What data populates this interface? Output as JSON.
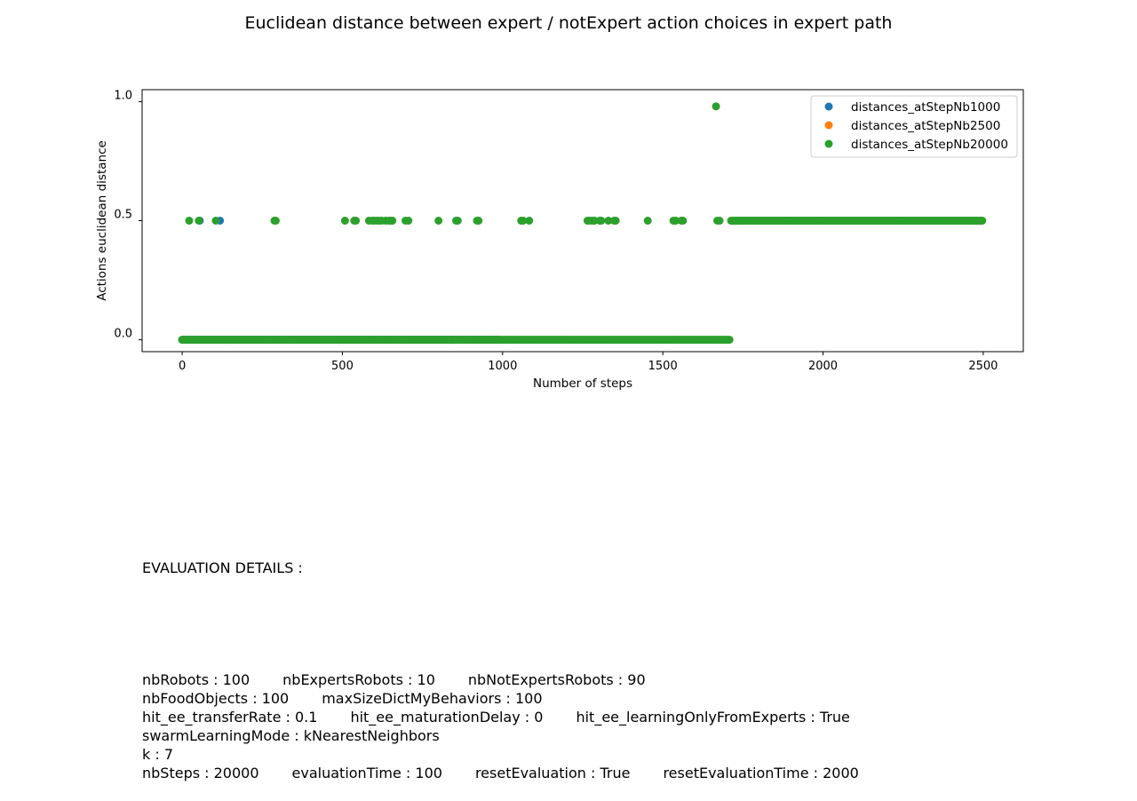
{
  "chart_data": {
    "type": "scatter",
    "title": "Euclidean distance between expert / notExpert action choices in expert path",
    "xlabel": "Number of steps",
    "ylabel": "Actions euclidean distance",
    "xlim": [
      -125,
      2625
    ],
    "ylim": [
      -0.05,
      1.05
    ],
    "x_ticks": [
      0,
      500,
      1000,
      1500,
      2000,
      2500
    ],
    "y_ticks": [
      0.0,
      0.5,
      1.0
    ],
    "x_tick_labels": [
      "0",
      "500",
      "1000",
      "1500",
      "2000",
      "2500"
    ],
    "y_tick_labels": [
      "0.0",
      "0.5",
      "1.0"
    ],
    "legend_position": "top-right",
    "grid": false,
    "series": [
      {
        "name": "distances_atStepNb1000",
        "color": "#1f77b4",
        "points_at_half": [
          55,
          118
        ],
        "zero_range": [
          0,
          990
        ],
        "half_range": null,
        "one_points": []
      },
      {
        "name": "distances_atStepNb2500",
        "color": "#ff7f0e",
        "points_at_half": [],
        "zero_range": null,
        "half_range": null,
        "one_points": []
      },
      {
        "name": "distances_atStepNb20000",
        "color": "#2ca02c",
        "points_at_half": [
          22,
          52,
          105,
          288,
          292,
          508,
          537,
          542,
          583,
          593,
          600,
          608,
          615,
          623,
          635,
          645,
          651,
          656,
          697,
          706,
          800,
          855,
          860,
          920,
          925,
          1058,
          1064,
          1083,
          1265,
          1272,
          1280,
          1287,
          1303,
          1308,
          1330,
          1348,
          1353,
          1453,
          1533,
          1540,
          1558,
          1563,
          1670,
          1677
        ],
        "zero_range": [
          0,
          1710
        ],
        "half_range": [
          1713,
          2500
        ],
        "one_points": [
          1666
        ]
      }
    ]
  },
  "details": {
    "heading": "EVALUATION DETAILS :",
    "lines": [
      [
        "nbRobots : 100",
        "nbExpertsRobots : 10",
        "nbNotExpertsRobots : 90"
      ],
      [
        "nbFoodObjects : 100",
        "maxSizeDictMyBehaviors : 100"
      ],
      [
        "hit_ee_transferRate : 0.1",
        "hit_ee_maturationDelay : 0",
        "hit_ee_learningOnlyFromExperts : True"
      ],
      [
        "swarmLearningMode : kNearestNeighbors"
      ],
      [
        "k : 7"
      ],
      [
        "nbSteps : 20000",
        "evaluationTime : 100",
        "resetEvaluation : True",
        "resetEvaluationTime : 2000"
      ]
    ]
  }
}
